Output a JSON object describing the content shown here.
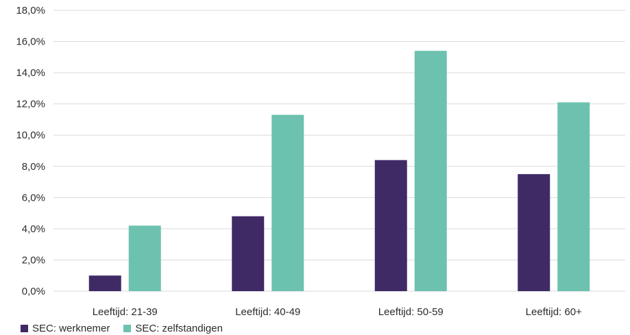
{
  "chart_data": {
    "type": "bar",
    "categories": [
      "Leeftijd: 21-39",
      "Leeftijd: 40-49",
      "Leeftijd: 50-59",
      "Leeftijd: 60+"
    ],
    "series": [
      {
        "name": "SEC: werknemer",
        "color": "#3f2a66",
        "values": [
          1.0,
          4.8,
          8.4,
          7.5
        ]
      },
      {
        "name": "SEC: zelfstandigen",
        "color": "#6cc2ae",
        "values": [
          4.2,
          11.3,
          15.4,
          12.1
        ]
      }
    ],
    "yticks": [
      "0,0%",
      "2,0%",
      "4,0%",
      "6,0%",
      "8,0%",
      "10,0%",
      "12,0%",
      "14,0%",
      "16,0%",
      "18,0%"
    ],
    "ylim": [
      0,
      18
    ],
    "y_unit": "%",
    "grid": true,
    "gridline_color": "#d9d9d9",
    "legend_position": "bottom-left",
    "title": "",
    "xlabel": "",
    "ylabel": ""
  }
}
